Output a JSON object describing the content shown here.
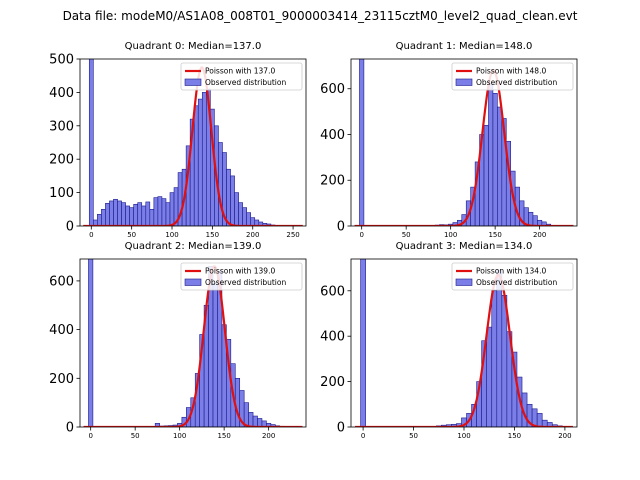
{
  "figure": {
    "suptitle": "Data file: modeM0/AS1A08_008T01_9000003414_23115cztM0_level2_quad_clean.evt"
  },
  "colors": {
    "bar_fill": "#7b7ee6",
    "bar_edge": "#1a1a8c",
    "fit_line": "#e01010",
    "axes": "#000000",
    "background": "#ffffff"
  },
  "chart_data": [
    {
      "type": "bar",
      "title": "Quadrant 0: Median=137.0",
      "xlim": [
        -14,
        266
      ],
      "ylim": [
        0,
        500
      ],
      "xticks": [
        0,
        50,
        100,
        150,
        200,
        250
      ],
      "yticks": [
        0,
        100,
        200,
        300,
        400,
        500
      ],
      "bin_width": 5,
      "hist_x": [
        0,
        5,
        10,
        15,
        20,
        25,
        30,
        35,
        40,
        45,
        50,
        55,
        60,
        65,
        70,
        75,
        80,
        85,
        90,
        95,
        100,
        105,
        110,
        115,
        120,
        125,
        130,
        135,
        140,
        145,
        150,
        155,
        160,
        165,
        170,
        175,
        180,
        185,
        190,
        195,
        200,
        205,
        210,
        215,
        220,
        225,
        230,
        235,
        240,
        245,
        250
      ],
      "hist_y": [
        2000,
        18,
        35,
        50,
        68,
        75,
        80,
        75,
        70,
        60,
        55,
        65,
        70,
        60,
        72,
        50,
        85,
        88,
        82,
        70,
        100,
        115,
        160,
        170,
        240,
        320,
        360,
        380,
        400,
        410,
        350,
        300,
        250,
        220,
        170,
        150,
        100,
        70,
        55,
        40,
        25,
        18,
        12,
        8,
        6,
        3,
        2,
        1,
        1,
        0,
        0
      ],
      "fit_mean": 137.0,
      "fit_peak": 475,
      "fit_label": "Poisson with 137.0",
      "observed_label": "Observed distribution"
    },
    {
      "type": "bar",
      "title": "Quadrant 1: Median=148.0",
      "xlim": [
        -12,
        242
      ],
      "ylim": [
        0,
        730
      ],
      "xticks": [
        0,
        50,
        100,
        150,
        200
      ],
      "yticks": [
        0,
        200,
        400,
        600
      ],
      "bin_width": 5,
      "hist_x": [
        0,
        5,
        10,
        15,
        20,
        25,
        30,
        35,
        40,
        45,
        50,
        55,
        60,
        65,
        70,
        75,
        80,
        85,
        90,
        95,
        100,
        105,
        110,
        115,
        120,
        125,
        130,
        135,
        140,
        145,
        150,
        155,
        160,
        165,
        170,
        175,
        180,
        185,
        190,
        195,
        200,
        205,
        210,
        215,
        220,
        225,
        230
      ],
      "hist_y": [
        3000,
        0,
        0,
        0,
        0,
        0,
        0,
        0,
        0,
        0,
        0,
        0,
        0,
        0,
        0,
        0,
        2,
        4,
        6,
        5,
        8,
        15,
        25,
        50,
        110,
        170,
        280,
        400,
        440,
        620,
        580,
        520,
        470,
        370,
        240,
        170,
        110,
        80,
        60,
        45,
        25,
        18,
        8,
        3,
        2,
        1,
        0
      ],
      "fit_mean": 148.0,
      "fit_peak": 680,
      "fit_label": "Poisson with 148.0",
      "observed_label": "Observed distribution"
    },
    {
      "type": "bar",
      "title": "Quadrant 2: Median=139.0",
      "xlim": [
        -12,
        242
      ],
      "ylim": [
        0,
        690
      ],
      "xticks": [
        0,
        50,
        100,
        150,
        200
      ],
      "yticks": [
        0,
        200,
        400,
        600
      ],
      "bin_width": 5,
      "hist_x": [
        0,
        5,
        10,
        15,
        20,
        25,
        30,
        35,
        40,
        45,
        50,
        55,
        60,
        65,
        70,
        75,
        80,
        85,
        90,
        95,
        100,
        105,
        110,
        115,
        120,
        125,
        130,
        135,
        140,
        145,
        150,
        155,
        160,
        165,
        170,
        175,
        180,
        185,
        190,
        195,
        200,
        205,
        210,
        215,
        220,
        225,
        230
      ],
      "hist_y": [
        3000,
        0,
        0,
        0,
        0,
        0,
        0,
        0,
        0,
        0,
        0,
        0,
        0,
        0,
        0,
        15,
        4,
        5,
        6,
        8,
        15,
        40,
        80,
        120,
        220,
        380,
        500,
        660,
        590,
        640,
        420,
        360,
        260,
        200,
        150,
        100,
        60,
        45,
        35,
        25,
        15,
        10,
        5,
        3,
        1,
        0,
        0
      ],
      "fit_mean": 139.0,
      "fit_peak": 660,
      "fit_label": "Poisson with 139.0",
      "observed_label": "Observed distribution"
    },
    {
      "type": "bar",
      "title": "Quadrant 3: Median=134.0",
      "xlim": [
        -12,
        212
      ],
      "ylim": [
        0,
        740
      ],
      "xticks": [
        0,
        50,
        100,
        150,
        200
      ],
      "yticks": [
        0,
        200,
        400,
        600
      ],
      "bin_width": 5,
      "hist_x": [
        0,
        5,
        10,
        15,
        20,
        25,
        30,
        35,
        40,
        45,
        50,
        55,
        60,
        65,
        70,
        75,
        80,
        85,
        90,
        95,
        100,
        105,
        110,
        115,
        120,
        125,
        130,
        135,
        140,
        145,
        150,
        155,
        160,
        165,
        170,
        175,
        180,
        185,
        190,
        195,
        200
      ],
      "hist_y": [
        3000,
        0,
        0,
        0,
        0,
        0,
        0,
        0,
        0,
        0,
        0,
        0,
        0,
        0,
        0,
        5,
        8,
        10,
        12,
        15,
        40,
        60,
        100,
        200,
        380,
        440,
        600,
        690,
        580,
        420,
        330,
        220,
        150,
        100,
        80,
        60,
        30,
        20,
        10,
        5,
        0
      ],
      "fit_mean": 134.0,
      "fit_peak": 670,
      "fit_label": "Poisson with 134.0",
      "observed_label": "Observed distribution"
    }
  ]
}
